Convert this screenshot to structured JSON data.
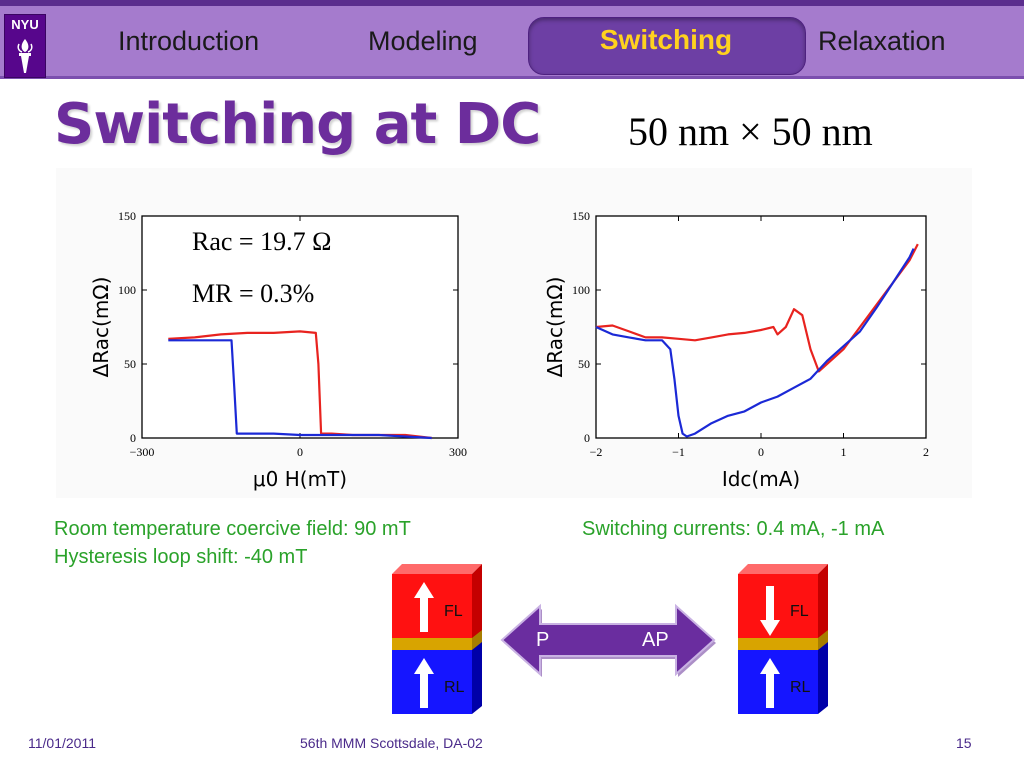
{
  "header": {
    "logo_text": "NYU",
    "tabs": [
      {
        "label": "Introduction",
        "active": false
      },
      {
        "label": "Modeling",
        "active": false
      },
      {
        "label": "Switching",
        "active": true
      },
      {
        "label": "Relaxation",
        "active": false
      }
    ]
  },
  "slide": {
    "title": "Switching at DC",
    "dimensions": "50 nm × 50 nm"
  },
  "colors": {
    "title": "#6c2d9c",
    "active_tab_text": "#ffd21e",
    "caption": "#2aa22a",
    "red_curve": "#e8231f",
    "blue_curve": "#1b29d6",
    "arrow_purple": "#6a2d9f"
  },
  "captions": {
    "left_line1": "Room temperature coercive field: 90 mT",
    "left_line2": "Hysteresis loop shift: -40 mT",
    "right": "Switching currents: 0.4 mA, -1 mA"
  },
  "chart_data": [
    {
      "type": "line",
      "xlabel": "μ0 H(mT)",
      "ylabel": "ΔRac(mΩ)",
      "xlim": [
        -300,
        300
      ],
      "ylim": [
        0,
        150
      ],
      "xticks": [
        -300,
        0,
        300
      ],
      "yticks": [
        0,
        50,
        100,
        150
      ],
      "annotations": [
        "Rac = 19.7 Ω",
        "MR = 0.3%"
      ],
      "series": [
        {
          "color": "red",
          "x": [
            -250,
            -200,
            -150,
            -100,
            -50,
            0,
            30,
            35,
            40,
            60,
            100,
            150,
            200,
            250
          ],
          "y": [
            67,
            68,
            70,
            71,
            71,
            72,
            71,
            50,
            3,
            3,
            2,
            2,
            2,
            0
          ]
        },
        {
          "color": "blue",
          "x": [
            -250,
            -200,
            -150,
            -130,
            -125,
            -120,
            -100,
            -50,
            0,
            50,
            100,
            150,
            200,
            250
          ],
          "y": [
            66,
            66,
            66,
            66,
            35,
            3,
            3,
            3,
            2,
            2,
            2,
            2,
            1,
            0
          ]
        }
      ]
    },
    {
      "type": "line",
      "xlabel": "Idc(mA)",
      "ylabel": "ΔRac(mΩ)",
      "xlim": [
        -2,
        2
      ],
      "ylim": [
        0,
        150
      ],
      "xticks": [
        -2,
        -1,
        0,
        1,
        2
      ],
      "yticks": [
        0,
        50,
        100,
        150
      ],
      "series": [
        {
          "color": "red",
          "x": [
            -2.0,
            -1.8,
            -1.6,
            -1.4,
            -1.2,
            -1.0,
            -0.8,
            -0.6,
            -0.4,
            -0.2,
            0.0,
            0.15,
            0.2,
            0.3,
            0.4,
            0.5,
            0.6,
            0.7,
            0.8,
            1.0,
            1.2,
            1.4,
            1.6,
            1.8,
            1.9
          ],
          "y": [
            75,
            76,
            72,
            68,
            68,
            67,
            66,
            68,
            70,
            71,
            73,
            75,
            70,
            75,
            87,
            83,
            60,
            45,
            50,
            60,
            75,
            90,
            105,
            120,
            131
          ]
        },
        {
          "color": "blue",
          "x": [
            -2.0,
            -1.8,
            -1.6,
            -1.4,
            -1.2,
            -1.1,
            -1.05,
            -1.0,
            -0.95,
            -0.9,
            -0.8,
            -0.6,
            -0.4,
            -0.2,
            0.0,
            0.2,
            0.4,
            0.6,
            0.8,
            1.0,
            1.2,
            1.4,
            1.6,
            1.8,
            1.85
          ],
          "y": [
            75,
            70,
            68,
            66,
            66,
            60,
            40,
            15,
            3,
            1,
            3,
            10,
            15,
            18,
            24,
            28,
            34,
            40,
            52,
            62,
            72,
            88,
            105,
            122,
            128
          ]
        }
      ]
    }
  ],
  "diagram": {
    "left_stack": {
      "top_label": "FL",
      "bottom_label": "RL",
      "top_arrow": "up",
      "bottom_arrow": "up"
    },
    "right_stack": {
      "top_label": "FL",
      "bottom_label": "RL",
      "top_arrow": "down",
      "bottom_arrow": "up"
    },
    "arrow_left_label": "P",
    "arrow_right_label": "AP"
  },
  "footer": {
    "date": "11/01/2011",
    "event": "56th MMM Scottsdale, DA-02",
    "page": "15"
  }
}
